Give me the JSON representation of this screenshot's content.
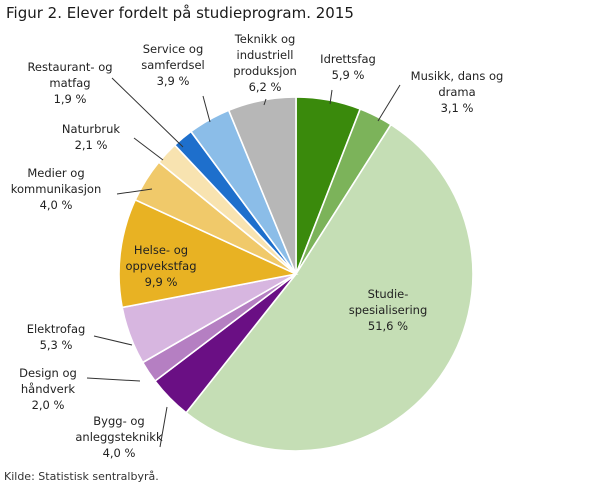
{
  "title": "Figur 2. Elever fordelt på studieprogram. 2015",
  "source": "Kilde: Statistisk sentralbyrå.",
  "chart_data": {
    "type": "pie",
    "title": "Figur 2. Elever fordelt på studieprogram. 2015",
    "legend": "none",
    "slices": [
      {
        "name": "Idrettsfag",
        "label_lines": [
          "Idrettsfag"
        ],
        "value_label": "5,9 %",
        "value": 5.9,
        "color": "#3a8a0c"
      },
      {
        "name": "Musikk, dans og drama",
        "label_lines": [
          "Musikk, dans og",
          "drama"
        ],
        "value_label": "3,1 %",
        "value": 3.1,
        "color": "#7cb35a"
      },
      {
        "name": "Studiespesialisering",
        "label_lines": [
          "Studie-",
          "spesialisering"
        ],
        "value_label": "51,6 %",
        "value": 51.6,
        "color": "#c5deb5"
      },
      {
        "name": "Bygg- og anleggsteknikk",
        "label_lines": [
          "Bygg- og",
          "anleggsteknikk"
        ],
        "value_label": "4,0 %",
        "value": 4.0,
        "color": "#6a0f84"
      },
      {
        "name": "Design og håndverk",
        "label_lines": [
          "Design og",
          "håndverk"
        ],
        "value_label": "2,0 %",
        "value": 2.0,
        "color": "#b57fc2"
      },
      {
        "name": "Elektrofag",
        "label_lines": [
          "Elektrofag"
        ],
        "value_label": "5,3 %",
        "value": 5.3,
        "color": "#d7b6e0"
      },
      {
        "name": "Helse- og oppvekstfag",
        "label_lines": [
          "Helse- og",
          "oppvekstfag"
        ],
        "value_label": "9,9 %",
        "value": 9.9,
        "color": "#e8b223"
      },
      {
        "name": "Medier og kommunikasjon",
        "label_lines": [
          "Medier og",
          "kommunikasjon"
        ],
        "value_label": "4,0 %",
        "value": 4.0,
        "color": "#f0c96a"
      },
      {
        "name": "Naturbruk",
        "label_lines": [
          "Naturbruk"
        ],
        "value_label": "2,1 %",
        "value": 2.1,
        "color": "#f8e3b0"
      },
      {
        "name": "Restaurant- og matfag",
        "label_lines": [
          "Restaurant- og",
          "matfag"
        ],
        "value_label": "1,9 %",
        "value": 1.9,
        "color": "#1e6fcc"
      },
      {
        "name": "Service og samferdsel",
        "label_lines": [
          "Service og",
          "samferdsel"
        ],
        "value_label": "3,9 %",
        "value": 3.9,
        "color": "#8bbde8"
      },
      {
        "name": "Teknikk og industriell produksjon",
        "label_lines": [
          "Teknikk og",
          "industriell",
          "produksjon"
        ],
        "value_label": "6,2 %",
        "value": 6.2,
        "color": "#b7b7b7"
      }
    ]
  }
}
